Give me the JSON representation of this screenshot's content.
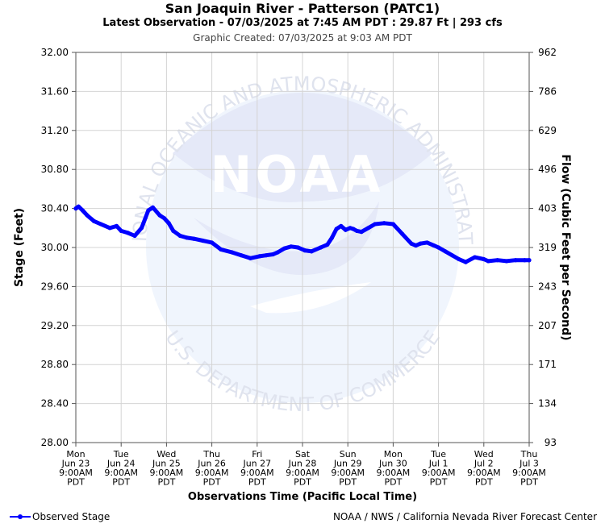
{
  "header": {
    "title": "San Joaquin River - Patterson (PATC1)",
    "latest": "Latest Observation - 07/03/2025 at 7:45 AM PDT : 29.87 Ft | 293 cfs",
    "created": "Graphic Created: 07/03/2025 at 9:03 AM PDT"
  },
  "legend": {
    "label": "Observed Stage",
    "color": "#0000ff"
  },
  "credit": "NOAA / NWS / California Nevada River Forecast Center",
  "watermark": {
    "logo_text": "NOAA",
    "top_text": "NATIONAL OCEANIC AND ATMOSPHERIC ADMINISTRATION",
    "bottom_text": "U.S. DEPARTMENT OF COMMERCE"
  },
  "chart_data": {
    "type": "line",
    "xlabel": "Observations Time (Pacific Local Time)",
    "ylabel": "Stage (Feet)",
    "y2label": "Flow (Cubic Feet per Second)",
    "ylim": [
      28.0,
      32.0
    ],
    "grid": true,
    "yticks": [
      "28.00",
      "28.40",
      "28.80",
      "29.20",
      "29.60",
      "30.00",
      "30.40",
      "30.80",
      "31.20",
      "31.60",
      "32.00"
    ],
    "y2ticks": [
      "93",
      "134",
      "171",
      "207",
      "243",
      "319",
      "403",
      "496",
      "629",
      "786",
      "962"
    ],
    "xticks": [
      [
        "Mon",
        "Jun 23",
        "9:00AM",
        "PDT"
      ],
      [
        "Tue",
        "Jun 24",
        "9:00AM",
        "PDT"
      ],
      [
        "Wed",
        "Jun 25",
        "9:00AM",
        "PDT"
      ],
      [
        "Thu",
        "Jun 26",
        "9:00AM",
        "PDT"
      ],
      [
        "Fri",
        "Jun 27",
        "9:00AM",
        "PDT"
      ],
      [
        "Sat",
        "Jun 28",
        "9:00AM",
        "PDT"
      ],
      [
        "Sun",
        "Jun 29",
        "9:00AM",
        "PDT"
      ],
      [
        "Mon",
        "Jun 30",
        "9:00AM",
        "PDT"
      ],
      [
        "Tue",
        "Jul 1",
        "9:00AM",
        "PDT"
      ],
      [
        "Wed",
        "Jul 2",
        "9:00AM",
        "PDT"
      ],
      [
        "Thu",
        "Jul 3",
        "9:00AM",
        "PDT"
      ]
    ],
    "series": [
      {
        "name": "Observed Stage",
        "x": [
          0,
          0.06,
          0.15,
          0.25,
          0.4,
          0.55,
          0.75,
          0.9,
          1.0,
          1.15,
          1.3,
          1.45,
          1.6,
          1.7,
          1.85,
          1.95,
          2.05,
          2.15,
          2.3,
          2.45,
          2.6,
          2.8,
          3.0,
          3.2,
          3.45,
          3.65,
          3.85,
          4.05,
          4.2,
          4.35,
          4.45,
          4.6,
          4.75,
          4.9,
          5.05,
          5.2,
          5.4,
          5.55,
          5.65,
          5.75,
          5.85,
          5.95,
          6.05,
          6.12,
          6.2,
          6.3,
          6.45,
          6.6,
          6.8,
          7.0,
          7.2,
          7.4,
          7.5,
          7.6,
          7.75,
          7.9,
          8.0,
          8.15,
          8.3,
          8.45,
          8.6,
          8.8,
          9.0,
          9.1,
          9.3,
          9.5,
          9.7,
          9.9,
          10.0
        ],
        "y": [
          30.4,
          30.42,
          30.38,
          30.33,
          30.27,
          30.24,
          30.2,
          30.22,
          30.17,
          30.15,
          30.12,
          30.2,
          30.38,
          30.41,
          30.33,
          30.3,
          30.25,
          30.17,
          30.12,
          30.1,
          30.09,
          30.07,
          30.05,
          29.98,
          29.95,
          29.92,
          29.89,
          29.91,
          29.92,
          29.93,
          29.95,
          29.99,
          30.01,
          30.0,
          29.97,
          29.96,
          30.0,
          30.03,
          30.1,
          30.19,
          30.22,
          30.18,
          30.2,
          30.19,
          30.17,
          30.16,
          30.2,
          30.24,
          30.25,
          30.24,
          30.14,
          30.04,
          30.02,
          30.04,
          30.05,
          30.02,
          30.0,
          29.96,
          29.92,
          29.88,
          29.85,
          29.9,
          29.88,
          29.86,
          29.87,
          29.86,
          29.87,
          29.87,
          29.87
        ]
      }
    ]
  }
}
